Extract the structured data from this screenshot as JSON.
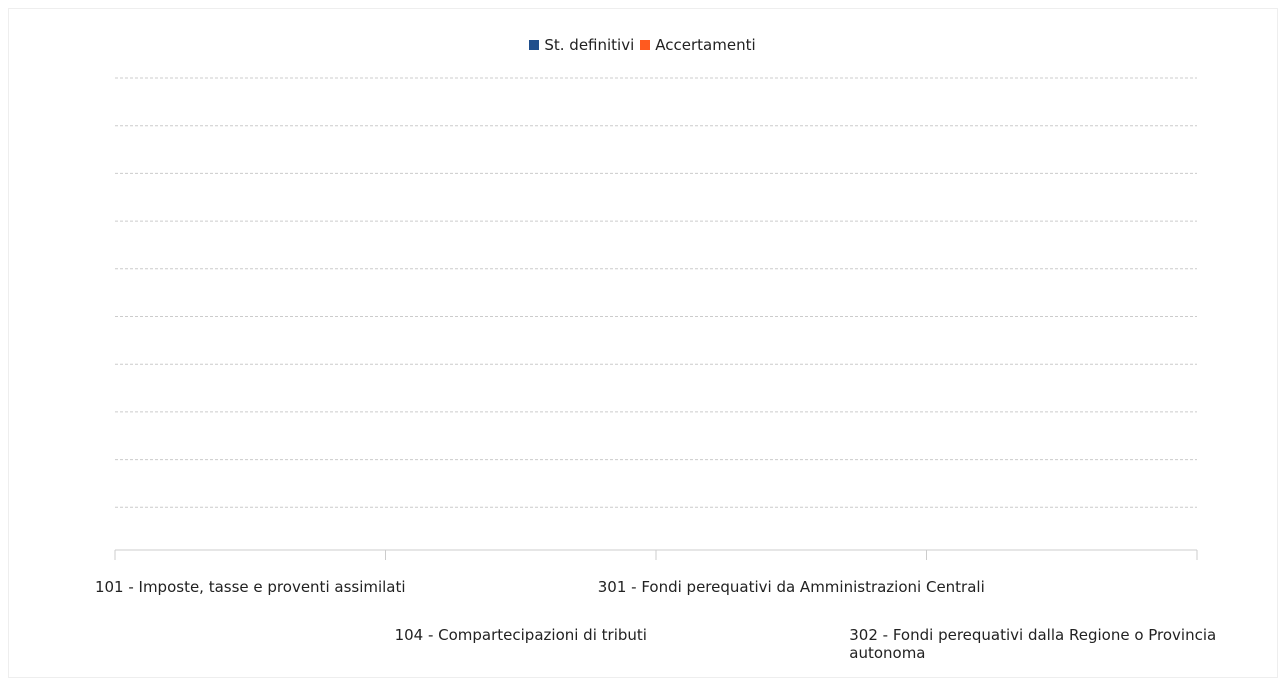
{
  "chart_data": {
    "type": "bar",
    "categories": [
      "101 - Imposte, tasse e proventi assimilati",
      "104 - Compartecipazioni di tributi",
      "301 - Fondi perequativi da Amministrazioni Centrali",
      "302 - Fondi perequativi dalla Regione o Provincia autonoma"
    ],
    "series": [
      {
        "name": "St. definitivi",
        "color": "#1f4e8c",
        "values": [
          null,
          null,
          null,
          null
        ]
      },
      {
        "name": "Accertamenti",
        "color": "#ff5a1f",
        "values": [
          null,
          null,
          null,
          null
        ]
      }
    ],
    "legend": "top"
  }
}
